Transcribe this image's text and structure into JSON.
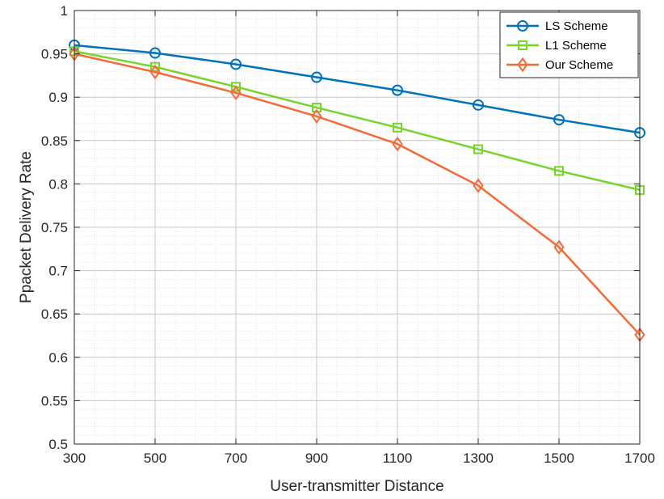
{
  "chart_data": {
    "type": "line",
    "title": "",
    "xlabel": "User-transmitter Distance",
    "ylabel": "Ppacket Delivery Rate",
    "x": [
      300,
      500,
      700,
      900,
      1100,
      1300,
      1500,
      1700
    ],
    "xlim": [
      300,
      1700
    ],
    "ylim": [
      0.5,
      1
    ],
    "xticks": [
      "300",
      "500",
      "700",
      "900",
      "1100",
      "1300",
      "1500",
      "1700"
    ],
    "yticks": [
      "0.5",
      "0.55",
      "0.6",
      "0.65",
      "0.7",
      "0.75",
      "0.8",
      "0.85",
      "0.9",
      "0.95",
      "1"
    ],
    "grid": true,
    "minor_grid": true,
    "legend_position": "top-right",
    "series": [
      {
        "name": "LS Scheme",
        "marker": "circle",
        "color": "#0072BD",
        "values": [
          0.96,
          0.951,
          0.938,
          0.923,
          0.908,
          0.891,
          0.874,
          0.859
        ]
      },
      {
        "name": "L1 Scheme",
        "marker": "square",
        "color": "#77D42A",
        "values": [
          0.953,
          0.935,
          0.912,
          0.888,
          0.865,
          0.84,
          0.815,
          0.793
        ]
      },
      {
        "name": "Our Scheme",
        "marker": "diamond",
        "color": "#F26B38",
        "values": [
          0.95,
          0.929,
          0.905,
          0.878,
          0.846,
          0.798,
          0.727,
          0.626
        ]
      }
    ]
  }
}
